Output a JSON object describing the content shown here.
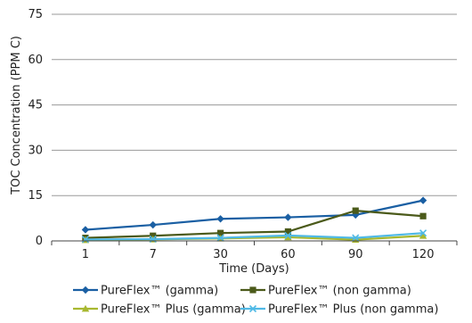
{
  "chart_data": {
    "type": "line",
    "title": "",
    "xlabel": "Time (Days)",
    "ylabel": "TOC Concentration (PPM C)",
    "categories": [
      "1",
      "7",
      "30",
      "60",
      "90",
      "120"
    ],
    "yticks": [
      "0",
      "15",
      "30",
      "45",
      "60",
      "75"
    ],
    "ylim": [
      0,
      75
    ],
    "grid": "horizontal",
    "legend_position": "bottom",
    "series": [
      {
        "name": "PureFlex™ (gamma)",
        "values": [
          3.7,
          5.3,
          7.3,
          7.8,
          8.6,
          13.4
        ],
        "color": "#1a5fa3",
        "marker": "diamond"
      },
      {
        "name": "PureFlex™ (non gamma)",
        "values": [
          1.0,
          1.7,
          2.6,
          3.1,
          10.0,
          8.2
        ],
        "color": "#4b5a1a",
        "marker": "square"
      },
      {
        "name": "PureFlex™ Plus (gamma)",
        "values": [
          0.3,
          0.5,
          0.8,
          1.2,
          0.4,
          1.7
        ],
        "color": "#a8b830",
        "marker": "triangle"
      },
      {
        "name": "PureFlex™ Plus (non gamma)",
        "values": [
          0.5,
          0.6,
          1.0,
          1.8,
          1.0,
          2.6
        ],
        "color": "#4fb9e6",
        "marker": "x"
      }
    ]
  }
}
